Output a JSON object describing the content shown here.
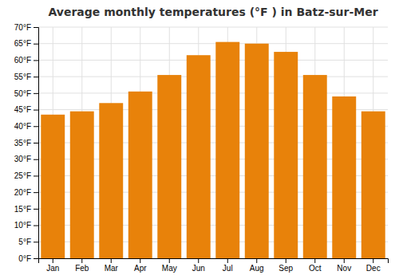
{
  "chart_data": {
    "type": "bar",
    "title": "Average monthly temperatures (°F ) in Batz-sur-Mer",
    "categories": [
      "Jan",
      "Feb",
      "Mar",
      "Apr",
      "May",
      "Jun",
      "Jul",
      "Aug",
      "Sep",
      "Oct",
      "Nov",
      "Dec"
    ],
    "values": [
      43.5,
      44.5,
      47.0,
      50.5,
      55.5,
      61.5,
      65.5,
      65.0,
      62.5,
      55.5,
      49.0,
      44.5
    ],
    "color": "#E8820A",
    "ylim": [
      0,
      70
    ],
    "yticks": [
      {
        "value": 0,
        "label": "0°F"
      },
      {
        "value": 5,
        "label": "5°F"
      },
      {
        "value": 10,
        "label": "10°F"
      },
      {
        "value": 15,
        "label": "15°F"
      },
      {
        "value": 20,
        "label": "20°F"
      },
      {
        "value": 25,
        "label": "25°F"
      },
      {
        "value": 30,
        "label": "30°F"
      },
      {
        "value": 35,
        "label": "35°F"
      },
      {
        "value": 40,
        "label": "40°F"
      },
      {
        "value": 45,
        "label": "45°F"
      },
      {
        "value": 50,
        "label": "50°F"
      },
      {
        "value": 55,
        "label": "55°F"
      },
      {
        "value": 60,
        "label": "60°F"
      },
      {
        "value": 65,
        "label": "65°F"
      },
      {
        "value": 70,
        "label": "70°F"
      }
    ],
    "grid": true
  }
}
